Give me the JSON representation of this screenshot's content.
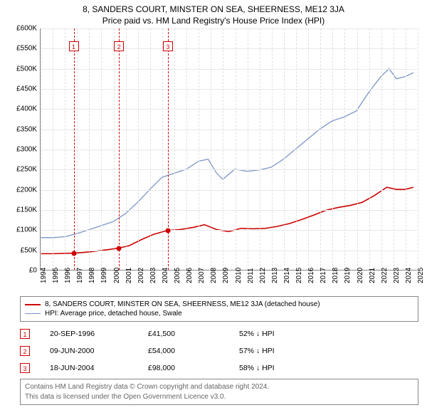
{
  "title": "8, SANDERS COURT, MINSTER ON SEA, SHEERNESS, ME12 3JA",
  "subtitle": "Price paid vs. HM Land Registry's House Price Index (HPI)",
  "chart": {
    "type": "line",
    "background_color": "#ffffff",
    "grid_color": "#e8e8e8",
    "vgrid_color": "#e0e0e0",
    "axis_color": "#888888",
    "title_fontsize": 12,
    "label_fontsize": 10,
    "ylim": [
      0,
      600000
    ],
    "ytick_step": 50000,
    "y_ticks": [
      "£0",
      "£50K",
      "£100K",
      "£150K",
      "£200K",
      "£250K",
      "£300K",
      "£350K",
      "£400K",
      "£450K",
      "£500K",
      "£550K",
      "£600K"
    ],
    "xlim": [
      1994,
      2025
    ],
    "x_ticks": [
      1994,
      1995,
      1996,
      1997,
      1998,
      1999,
      2000,
      2001,
      2002,
      2003,
      2004,
      2005,
      2006,
      2007,
      2008,
      2009,
      2010,
      2011,
      2012,
      2013,
      2014,
      2015,
      2016,
      2017,
      2018,
      2019,
      2020,
      2021,
      2022,
      2023,
      2024,
      2025
    ],
    "series": [
      {
        "name": "HPI: Average price, detached house, Swale",
        "color": "#7a95c6",
        "line_width": 1.3,
        "data": [
          [
            1994.0,
            80000
          ],
          [
            1995.0,
            80000
          ],
          [
            1996.0,
            82000
          ],
          [
            1997.0,
            90000
          ],
          [
            1998.0,
            100000
          ],
          [
            1999.0,
            110000
          ],
          [
            2000.0,
            120000
          ],
          [
            2001.0,
            140000
          ],
          [
            2002.0,
            168000
          ],
          [
            2003.0,
            200000
          ],
          [
            2004.0,
            230000
          ],
          [
            2005.0,
            240000
          ],
          [
            2006.0,
            250000
          ],
          [
            2007.0,
            270000
          ],
          [
            2007.8,
            275000
          ],
          [
            2008.5,
            240000
          ],
          [
            2009.0,
            225000
          ],
          [
            2010.0,
            250000
          ],
          [
            2011.0,
            245000
          ],
          [
            2012.0,
            248000
          ],
          [
            2013.0,
            255000
          ],
          [
            2014.0,
            275000
          ],
          [
            2015.0,
            300000
          ],
          [
            2016.0,
            325000
          ],
          [
            2017.0,
            350000
          ],
          [
            2018.0,
            370000
          ],
          [
            2019.0,
            380000
          ],
          [
            2020.0,
            395000
          ],
          [
            2021.0,
            440000
          ],
          [
            2022.0,
            480000
          ],
          [
            2022.7,
            500000
          ],
          [
            2023.3,
            475000
          ],
          [
            2024.0,
            480000
          ],
          [
            2024.7,
            490000
          ]
        ]
      },
      {
        "name": "8, SANDERS COURT, MINSTER ON SEA, SHEERNESS, ME12 3JA (detached house)",
        "color": "#cc0000",
        "line_width": 1.6,
        "data": [
          [
            1994.0,
            40000
          ],
          [
            1995.0,
            40000
          ],
          [
            1996.72,
            41500
          ],
          [
            1997.5,
            43000
          ],
          [
            1998.5,
            46000
          ],
          [
            1999.5,
            50000
          ],
          [
            2000.44,
            54000
          ],
          [
            2001.3,
            60000
          ],
          [
            2002.3,
            75000
          ],
          [
            2003.3,
            88000
          ],
          [
            2004.46,
            98000
          ],
          [
            2005.5,
            100000
          ],
          [
            2006.5,
            105000
          ],
          [
            2007.5,
            112000
          ],
          [
            2008.5,
            100000
          ],
          [
            2009.5,
            95000
          ],
          [
            2010.5,
            103000
          ],
          [
            2011.5,
            102000
          ],
          [
            2012.5,
            103000
          ],
          [
            2013.5,
            108000
          ],
          [
            2014.5,
            115000
          ],
          [
            2015.5,
            125000
          ],
          [
            2016.5,
            136000
          ],
          [
            2017.5,
            148000
          ],
          [
            2018.5,
            155000
          ],
          [
            2019.5,
            160000
          ],
          [
            2020.5,
            168000
          ],
          [
            2021.5,
            185000
          ],
          [
            2022.5,
            205000
          ],
          [
            2023.3,
            200000
          ],
          [
            2024.0,
            200000
          ],
          [
            2024.7,
            205000
          ]
        ]
      }
    ],
    "markers": [
      {
        "id": "1",
        "x": 1996.72,
        "y": 41500
      },
      {
        "id": "2",
        "x": 2000.44,
        "y": 54000
      },
      {
        "id": "3",
        "x": 2004.46,
        "y": 98000
      }
    ]
  },
  "legend": {
    "items": [
      {
        "color": "#cc0000",
        "label": "8, SANDERS COURT, MINSTER ON SEA, SHEERNESS, ME12 3JA (detached house)",
        "width": 2
      },
      {
        "color": "#7a95c6",
        "label": "HPI: Average price, detached house, Swale",
        "width": 1.3
      }
    ]
  },
  "records": [
    {
      "id": "1",
      "date": "20-SEP-1996",
      "price": "£41,500",
      "pct": "52% ↓ HPI"
    },
    {
      "id": "2",
      "date": "09-JUN-2000",
      "price": "£54,000",
      "pct": "57% ↓ HPI"
    },
    {
      "id": "3",
      "date": "18-JUN-2004",
      "price": "£98,000",
      "pct": "58% ↓ HPI"
    }
  ],
  "footnote": {
    "line1": "Contains HM Land Registry data © Crown copyright and database right 2024.",
    "line2": "This data is licensed under the Open Government Licence v3.0."
  }
}
